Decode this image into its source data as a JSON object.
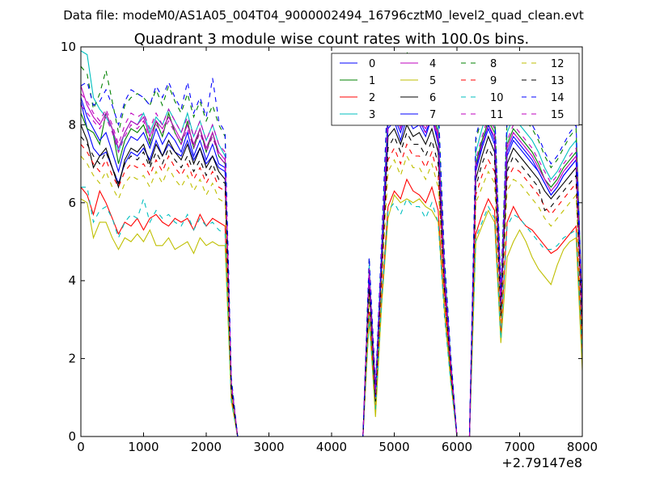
{
  "header": {
    "data_file": "Data file: modeM0/AS1A05_004T04_9000002494_16796cztM0_level2_quad_clean.evt"
  },
  "chart_data": {
    "type": "line",
    "title": "Quadrant 3 module wise count rates with 100.0s bins.",
    "xlabel": "",
    "ylabel": "",
    "x_offset_label": "+2.79147e8",
    "xlim": [
      0,
      8000
    ],
    "ylim": [
      0,
      10
    ],
    "x_ticks": [
      0,
      1000,
      2000,
      3000,
      4000,
      5000,
      6000,
      7000,
      8000
    ],
    "x_tick_labels": [
      "0",
      "1000",
      "2000",
      "3000",
      "4000",
      "5000",
      "6000",
      "7000",
      "8000"
    ],
    "y_ticks": [
      0,
      2,
      4,
      6,
      8,
      10
    ],
    "y_tick_labels": [
      "0",
      "2",
      "4",
      "6",
      "8",
      "10"
    ],
    "grid": false,
    "legend_position": "top-right",
    "x": [
      0,
      100,
      200,
      300,
      400,
      500,
      600,
      700,
      800,
      900,
      1000,
      1100,
      1200,
      1300,
      1400,
      1500,
      1600,
      1700,
      1800,
      1900,
      2000,
      2100,
      2200,
      2300,
      2400,
      2500,
      2600,
      4500,
      4600,
      4700,
      4800,
      4900,
      5000,
      5100,
      5200,
      5300,
      5400,
      5500,
      5600,
      5700,
      5800,
      5900,
      6000,
      6100,
      6200,
      6300,
      6400,
      6500,
      6600,
      6700,
      6800,
      6900,
      7000,
      7100,
      7200,
      7300,
      7400,
      7500,
      7600,
      7700,
      7800,
      7900,
      8000
    ],
    "series": [
      {
        "name": "0",
        "color": "#0000ff",
        "dash": "solid",
        "values": [
          8.6,
          7.9,
          7.4,
          7.2,
          7.3,
          6.9,
          6.5,
          7.0,
          7.3,
          7.2,
          7.4,
          7.1,
          7.6,
          7.2,
          7.5,
          7.3,
          7.2,
          7.6,
          7.1,
          7.4,
          7.0,
          7.2,
          6.9,
          6.8,
          1.2,
          0,
          0,
          0,
          4.0,
          1.0,
          4.5,
          7.9,
          8.1,
          7.6,
          8.2,
          7.9,
          8.0,
          7.7,
          8.2,
          7.5,
          4.0,
          1.8,
          0,
          0,
          0,
          6.8,
          7.4,
          7.9,
          7.5,
          3.3,
          7.2,
          7.6,
          7.4,
          7.2,
          7.0,
          6.8,
          6.5,
          6.2,
          6.4,
          6.7,
          6.9,
          7.1,
          2.8
        ]
      },
      {
        "name": "1",
        "color": "#008000",
        "dash": "solid",
        "values": [
          8.3,
          7.9,
          7.8,
          7.5,
          8.3,
          7.9,
          7.0,
          7.6,
          7.9,
          7.8,
          8.0,
          7.5,
          8.1,
          7.7,
          8.3,
          7.8,
          7.5,
          8.1,
          7.4,
          7.9,
          7.3,
          7.8,
          7.2,
          7.0,
          1.3,
          0,
          0,
          0,
          4.3,
          1.2,
          4.8,
          8.3,
          8.5,
          8.0,
          8.6,
          8.3,
          8.2,
          8.0,
          8.4,
          7.8,
          4.2,
          1.9,
          0,
          0,
          0,
          7.0,
          7.6,
          8.1,
          7.8,
          3.5,
          7.5,
          7.9,
          7.7,
          7.5,
          7.3,
          7.0,
          6.6,
          6.4,
          6.6,
          6.9,
          7.1,
          7.3,
          2.9
        ]
      },
      {
        "name": "2",
        "color": "#ff0000",
        "dash": "solid",
        "values": [
          6.4,
          6.2,
          5.7,
          6.3,
          6.0,
          5.6,
          5.2,
          5.5,
          5.4,
          5.6,
          5.3,
          5.6,
          5.7,
          5.5,
          5.4,
          5.6,
          5.5,
          5.6,
          5.3,
          5.7,
          5.4,
          5.6,
          5.5,
          5.4,
          1.0,
          0,
          0,
          0,
          3.2,
          0.8,
          3.6,
          5.9,
          6.3,
          6.1,
          6.6,
          6.3,
          6.2,
          6.0,
          6.4,
          5.8,
          3.3,
          1.5,
          0,
          0,
          0,
          5.2,
          5.7,
          6.1,
          5.8,
          2.6,
          5.5,
          5.9,
          5.6,
          5.4,
          5.3,
          5.1,
          4.9,
          4.7,
          4.8,
          5.0,
          5.2,
          5.4,
          2.2
        ]
      },
      {
        "name": "3",
        "color": "#00bfbf",
        "dash": "solid",
        "values": [
          9.9,
          9.8,
          8.7,
          8.4,
          8.2,
          7.9,
          7.3,
          7.8,
          8.1,
          8.0,
          8.3,
          7.8,
          8.2,
          8.0,
          8.4,
          8.1,
          7.8,
          8.3,
          7.7,
          8.1,
          7.6,
          8.0,
          7.5,
          7.2,
          1.4,
          0,
          0,
          0,
          4.4,
          1.2,
          4.9,
          8.5,
          8.8,
          8.3,
          8.9,
          8.6,
          8.5,
          8.2,
          8.7,
          8.0,
          4.4,
          2.0,
          0,
          0,
          0,
          7.3,
          7.9,
          8.4,
          8.1,
          3.6,
          7.8,
          8.2,
          8.0,
          7.8,
          7.6,
          7.3,
          6.9,
          6.6,
          6.8,
          7.1,
          7.4,
          7.6,
          3.0
        ]
      },
      {
        "name": "4",
        "color": "#bf00bf",
        "dash": "solid",
        "values": [
          9.0,
          8.5,
          8.2,
          8.0,
          8.3,
          7.9,
          7.4,
          7.8,
          8.1,
          8.0,
          8.2,
          7.7,
          8.1,
          7.9,
          8.2,
          7.9,
          7.6,
          8.0,
          7.5,
          7.9,
          7.4,
          7.8,
          7.3,
          7.1,
          1.3,
          0,
          0,
          0,
          4.2,
          1.1,
          4.7,
          8.2,
          8.4,
          7.9,
          8.5,
          8.2,
          8.1,
          7.9,
          8.3,
          7.7,
          4.1,
          1.9,
          0,
          0,
          0,
          6.9,
          7.5,
          8.0,
          7.7,
          3.4,
          7.4,
          7.8,
          7.6,
          7.4,
          7.2,
          6.9,
          6.6,
          6.3,
          6.5,
          6.8,
          7.0,
          7.2,
          2.9
        ]
      },
      {
        "name": "5",
        "color": "#bfbf00",
        "dash": "solid",
        "values": [
          6.1,
          6.0,
          5.1,
          5.5,
          5.5,
          5.1,
          4.8,
          5.1,
          5.0,
          5.2,
          5.0,
          5.3,
          4.9,
          4.9,
          5.1,
          4.8,
          4.9,
          5.0,
          4.7,
          5.1,
          4.9,
          5.0,
          4.9,
          4.9,
          0.9,
          0,
          0,
          0,
          3.0,
          0.5,
          3.4,
          5.6,
          6.2,
          6.0,
          6.1,
          6.0,
          6.1,
          5.9,
          5.8,
          5.5,
          3.2,
          1.4,
          0,
          0,
          0,
          5.0,
          5.4,
          5.8,
          5.5,
          2.4,
          4.6,
          5.0,
          5.3,
          5.0,
          4.6,
          4.3,
          4.1,
          3.9,
          4.4,
          4.8,
          5.0,
          5.1,
          1.7
        ]
      },
      {
        "name": "6",
        "color": "#000000",
        "dash": "solid",
        "values": [
          8.0,
          7.6,
          6.9,
          7.2,
          7.4,
          6.9,
          6.4,
          7.1,
          7.4,
          7.3,
          7.5,
          7.0,
          7.5,
          7.2,
          7.6,
          7.3,
          7.1,
          7.5,
          7.0,
          7.4,
          6.9,
          7.2,
          6.8,
          6.6,
          1.2,
          0,
          0,
          0,
          3.9,
          0.9,
          4.4,
          7.7,
          7.9,
          7.5,
          8.0,
          7.7,
          7.8,
          7.5,
          7.9,
          7.3,
          3.9,
          1.7,
          0,
          0,
          0,
          6.6,
          7.2,
          7.7,
          7.3,
          3.2,
          7.0,
          7.4,
          7.2,
          7.0,
          6.8,
          6.6,
          6.3,
          6.1,
          6.3,
          6.5,
          6.7,
          6.9,
          2.7
        ]
      },
      {
        "name": "7",
        "color": "#0000ff",
        "dash": "solid",
        "values": [
          8.7,
          8.2,
          7.9,
          7.6,
          7.8,
          7.3,
          6.8,
          7.4,
          7.7,
          7.6,
          7.8,
          7.4,
          7.9,
          7.5,
          7.8,
          7.6,
          7.3,
          7.8,
          7.2,
          7.6,
          7.1,
          7.5,
          7.0,
          6.9,
          1.2,
          0,
          0,
          0,
          4.1,
          1.0,
          4.6,
          8.0,
          8.2,
          7.8,
          8.3,
          8.0,
          8.1,
          7.8,
          8.2,
          7.6,
          4.0,
          1.8,
          0,
          0,
          0,
          6.9,
          7.5,
          8.0,
          7.6,
          3.3,
          7.3,
          7.7,
          7.5,
          7.3,
          7.1,
          6.8,
          6.5,
          6.2,
          6.4,
          6.7,
          6.9,
          7.1,
          2.8
        ]
      },
      {
        "name": "8",
        "color": "#008000",
        "dash": "dashed",
        "values": [
          9.5,
          9.3,
          8.4,
          8.8,
          9.4,
          8.6,
          7.8,
          8.5,
          8.7,
          8.8,
          8.7,
          8.5,
          8.9,
          8.5,
          9.0,
          8.6,
          8.3,
          8.8,
          8.2,
          8.6,
          8.1,
          8.5,
          8.0,
          7.7,
          1.5,
          0,
          0,
          0,
          4.6,
          1.3,
          5.1,
          9.0,
          9.3,
          8.8,
          9.9,
          9.1,
          9.0,
          8.7,
          9.2,
          8.5,
          4.6,
          2.1,
          0,
          0,
          0,
          7.6,
          8.2,
          8.7,
          8.4,
          3.8,
          8.1,
          8.5,
          8.3,
          8.1,
          7.9,
          7.6,
          7.2,
          6.9,
          7.1,
          7.4,
          7.7,
          7.9,
          3.2
        ]
      },
      {
        "name": "9",
        "color": "#ff0000",
        "dash": "dashed",
        "values": [
          7.5,
          7.3,
          7.0,
          6.8,
          7.1,
          6.7,
          6.4,
          6.8,
          7.0,
          6.9,
          7.0,
          6.7,
          7.1,
          6.8,
          7.2,
          6.9,
          6.7,
          7.0,
          6.6,
          6.9,
          6.5,
          6.8,
          6.4,
          6.3,
          1.1,
          0,
          0,
          0,
          3.7,
          0.9,
          4.1,
          7.1,
          7.4,
          7.0,
          7.5,
          7.2,
          7.2,
          6.9,
          7.3,
          6.7,
          3.7,
          1.6,
          0,
          0,
          0,
          6.2,
          6.7,
          7.1,
          6.8,
          3.0,
          6.6,
          6.9,
          6.8,
          6.6,
          6.4,
          6.2,
          5.9,
          5.7,
          5.9,
          6.1,
          6.3,
          6.5,
          2.5
        ]
      },
      {
        "name": "10",
        "color": "#00bfbf",
        "dash": "dashed",
        "values": [
          6.4,
          6.4,
          5.5,
          5.8,
          5.9,
          5.6,
          5.1,
          5.5,
          5.7,
          5.6,
          6.1,
          5.5,
          5.8,
          5.6,
          5.7,
          5.5,
          5.4,
          5.7,
          5.3,
          5.6,
          5.4,
          5.5,
          5.3,
          5.2,
          0.9,
          0,
          0,
          0,
          3.1,
          0.7,
          3.5,
          5.8,
          6.0,
          5.7,
          6.1,
          5.9,
          5.9,
          5.6,
          6.0,
          5.5,
          3.1,
          1.4,
          0,
          0,
          0,
          5.1,
          5.5,
          5.9,
          5.6,
          2.5,
          5.4,
          5.7,
          5.6,
          5.4,
          5.2,
          5.0,
          4.8,
          4.8,
          4.9,
          5.1,
          5.2,
          5.3,
          2.1
        ]
      },
      {
        "name": "11",
        "color": "#bf00bf",
        "dash": "dashed",
        "values": [
          8.5,
          8.3,
          8.1,
          7.9,
          8.2,
          7.8,
          7.3,
          7.7,
          8.0,
          7.9,
          8.1,
          7.6,
          8.0,
          7.8,
          8.1,
          7.8,
          7.5,
          7.9,
          7.4,
          7.8,
          7.3,
          7.7,
          7.2,
          7.0,
          1.3,
          0,
          0,
          0,
          4.2,
          1.1,
          4.7,
          8.1,
          8.3,
          7.9,
          8.4,
          8.1,
          8.0,
          7.8,
          8.2,
          7.6,
          4.1,
          1.9,
          0,
          0,
          0,
          6.9,
          7.5,
          8.0,
          7.7,
          3.4,
          7.4,
          7.8,
          7.6,
          7.4,
          7.2,
          6.9,
          6.6,
          6.3,
          6.5,
          6.8,
          7.0,
          7.2,
          2.9
        ]
      },
      {
        "name": "12",
        "color": "#bfbf00",
        "dash": "dashed",
        "values": [
          7.2,
          7.0,
          6.7,
          6.5,
          6.8,
          6.4,
          6.1,
          6.5,
          6.7,
          6.6,
          6.7,
          6.4,
          6.8,
          6.5,
          6.9,
          6.6,
          6.4,
          6.7,
          6.3,
          6.6,
          6.2,
          6.5,
          6.1,
          6.0,
          1.1,
          0,
          0,
          0,
          3.6,
          0.8,
          4.0,
          6.8,
          7.1,
          6.7,
          7.2,
          6.9,
          6.9,
          6.6,
          7.0,
          6.4,
          3.6,
          1.6,
          0,
          0,
          0,
          6.0,
          6.4,
          6.8,
          6.5,
          2.9,
          6.3,
          6.6,
          6.5,
          6.3,
          6.1,
          5.9,
          5.6,
          5.4,
          5.6,
          5.8,
          6.0,
          6.2,
          2.4
        ]
      },
      {
        "name": "13",
        "color": "#000000",
        "dash": "dashed",
        "values": [
          7.7,
          7.5,
          7.2,
          7.0,
          7.3,
          6.9,
          6.5,
          7.0,
          7.2,
          7.1,
          7.3,
          6.9,
          7.3,
          7.0,
          7.4,
          7.1,
          6.9,
          7.2,
          6.8,
          7.1,
          6.7,
          7.0,
          6.6,
          6.5,
          1.2,
          0,
          0,
          0,
          3.8,
          0.9,
          4.3,
          7.4,
          7.7,
          7.3,
          7.8,
          7.5,
          7.5,
          7.2,
          7.6,
          7.0,
          3.8,
          1.7,
          0,
          0,
          0,
          6.4,
          7.0,
          7.4,
          7.1,
          3.1,
          6.8,
          7.2,
          7.0,
          6.8,
          6.6,
          6.4,
          5.8,
          5.9,
          6.1,
          6.3,
          6.5,
          6.7,
          2.6
        ]
      },
      {
        "name": "14",
        "color": "#0000ff",
        "dash": "dashed",
        "values": [
          9.0,
          9.1,
          8.5,
          8.6,
          8.9,
          8.5,
          8.0,
          8.6,
          8.9,
          8.8,
          8.7,
          8.5,
          9.0,
          8.7,
          9.1,
          8.7,
          8.4,
          9.1,
          8.3,
          8.7,
          8.2,
          9.2,
          8.1,
          7.8,
          1.5,
          0,
          0,
          0,
          4.6,
          1.3,
          5.1,
          9.1,
          9.4,
          8.9,
          9.5,
          9.2,
          9.1,
          8.8,
          9.3,
          8.6,
          4.6,
          2.1,
          0,
          0,
          0,
          7.7,
          8.3,
          8.8,
          8.5,
          3.8,
          8.2,
          8.6,
          8.4,
          8.2,
          8.0,
          7.7,
          7.3,
          7.0,
          7.2,
          7.5,
          7.8,
          8.0,
          3.2
        ]
      },
      {
        "name": "15",
        "color": "#bf00bf",
        "dash": "dashed",
        "values": [
          8.8,
          8.6,
          8.3,
          8.1,
          8.4,
          8.0,
          7.5,
          8.0,
          8.3,
          8.2,
          8.3,
          7.9,
          8.3,
          8.0,
          8.4,
          8.1,
          7.8,
          8.2,
          7.7,
          8.1,
          7.6,
          8.0,
          7.5,
          7.3,
          1.4,
          0,
          0,
          0,
          4.3,
          1.1,
          4.8,
          8.3,
          8.6,
          8.1,
          8.7,
          8.4,
          8.3,
          8.0,
          8.5,
          7.8,
          4.2,
          1.9,
          0,
          0,
          0,
          7.1,
          7.7,
          8.2,
          7.9,
          3.5,
          7.6,
          8.0,
          7.8,
          7.6,
          7.4,
          7.1,
          6.8,
          6.5,
          6.7,
          7.0,
          7.2,
          7.4,
          3.0
        ]
      }
    ]
  }
}
